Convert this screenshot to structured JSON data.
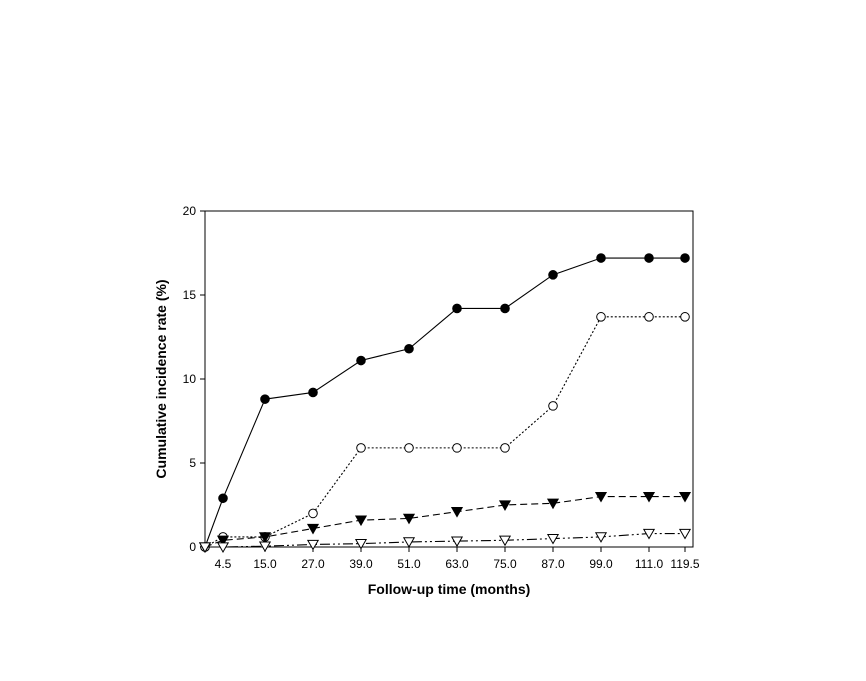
{
  "chart_data": {
    "type": "line",
    "title": "",
    "xlabel": "Follow-up time (months)",
    "ylabel": "Cumulative incidence rate (%)",
    "x": [
      0,
      4.5,
      15.0,
      27.0,
      39.0,
      51.0,
      63.0,
      75.0,
      87.0,
      99.0,
      111.0,
      119.5
    ],
    "x_tick_labels": [
      "4.5",
      "15.0",
      "27.0",
      "39.0",
      "51.0",
      "63.0",
      "75.0",
      "87.0",
      "99.0",
      "111.0",
      "119.5"
    ],
    "y_ticks": [
      0,
      5,
      10,
      15,
      20
    ],
    "ylim": [
      0,
      20
    ],
    "grid": false,
    "series": [
      {
        "style": "solid",
        "marker": "circle-filled",
        "color": "#000000",
        "values": [
          0,
          2.9,
          8.8,
          9.2,
          11.1,
          11.8,
          14.2,
          14.2,
          16.2,
          17.2,
          17.2,
          17.2
        ]
      },
      {
        "style": "dotted",
        "marker": "circle-open",
        "color": "#000000",
        "values": [
          0,
          0.6,
          0.6,
          2.0,
          5.9,
          5.9,
          5.9,
          5.9,
          8.4,
          13.7,
          13.7,
          13.7
        ]
      },
      {
        "style": "dashed",
        "marker": "triangle-down-filled",
        "color": "#000000",
        "values": [
          0,
          0.4,
          0.6,
          1.1,
          1.6,
          1.7,
          2.1,
          2.5,
          2.6,
          3.0,
          3.0,
          3.0
        ]
      },
      {
        "style": "dash-dot-dot",
        "marker": "triangle-down-open",
        "color": "#000000",
        "values": [
          0,
          0.0,
          0.05,
          0.15,
          0.2,
          0.3,
          0.35,
          0.4,
          0.5,
          0.6,
          0.8,
          0.8
        ]
      }
    ]
  }
}
